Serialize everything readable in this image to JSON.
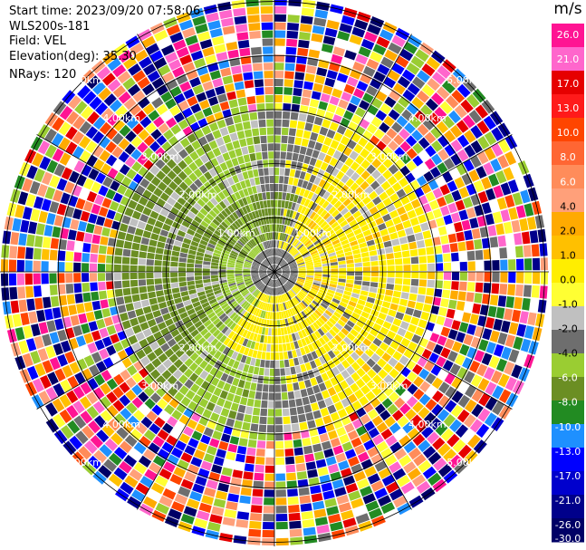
{
  "header": {
    "start_time": "Start time: 2023/09/20 07:58:06",
    "instrument": "WLS200s-181",
    "field": "Field: VEL",
    "elevation": "Elevation(deg): 35.30",
    "nrays": "NRays: 120"
  },
  "colorbar": {
    "unit": "m/s",
    "ticks": [
      "26.0",
      "21.0",
      "17.0",
      "13.0",
      "10.0",
      "8.0",
      "6.0",
      "4.0",
      "2.0",
      "1.0",
      "0.0",
      "-1.0",
      "-2.0",
      "-4.0",
      "-6.0",
      "-8.0",
      "-10.0",
      "-13.0",
      "-17.0",
      "-21.0",
      "-26.0",
      "-30.0"
    ],
    "colors": [
      "#ff1493",
      "#ff66cc",
      "#e60000",
      "#ff1a1a",
      "#ff4500",
      "#ff6633",
      "#ff8c5a",
      "#ffa07a",
      "#ffaa00",
      "#ffc000",
      "#ffee00",
      "#ffff33",
      "#c0c0c0",
      "#6e6e6e",
      "#9acd32",
      "#6b8e23",
      "#228b22",
      "#1e90ff",
      "#0000ff",
      "#0000cd",
      "#00008b",
      "#000066"
    ]
  },
  "chart_data": {
    "type": "heatmap",
    "projection": "polar PPI",
    "field": "VEL",
    "units": "m/s",
    "n_rays": 120,
    "range_rings_km": [
      "1.00km",
      "2.00km",
      "3.00km",
      "4.00km",
      "5.00km"
    ],
    "range_ring_labels": [
      "1.00km",
      "1.00km",
      "2.00km",
      "2.00km",
      "2.00km",
      "2.00km",
      "3.00km",
      "3.00km",
      "3.00km",
      "3.00km",
      "4.00km",
      "4.00km",
      "4.00km",
      "4.00km",
      "5.00km",
      "5.00km",
      "5.00km",
      "5.00km"
    ],
    "max_range_km": 5.0,
    "color_scale_min": -30.0,
    "color_scale_max": 26.0
  }
}
